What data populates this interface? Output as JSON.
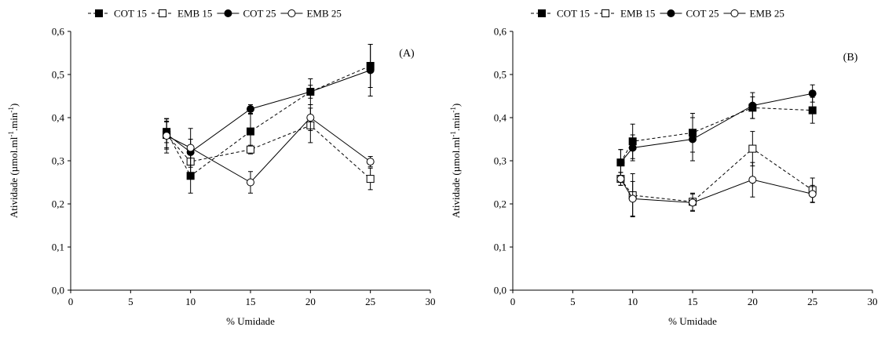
{
  "chart_data": [
    {
      "type": "line",
      "annotation": "(A)",
      "xlabel": "% Umidade",
      "ylabel": "Atividade (µmol.ml-1.min-1)",
      "xlim": [
        0,
        30
      ],
      "ylim": [
        0,
        0.6
      ],
      "xticks": [
        0,
        5,
        10,
        15,
        20,
        25,
        30
      ],
      "yticks": [
        "0,0",
        "0,1",
        "0,2",
        "0,3",
        "0,4",
        "0,5",
        "0,6"
      ],
      "grid": false,
      "legend_position": "top",
      "series": [
        {
          "name": "COT 15",
          "marker": "filled-square",
          "line": "dashed",
          "x": [
            8,
            10,
            15,
            20,
            25
          ],
          "y": [
            0.367,
            0.265,
            0.368,
            0.46,
            0.52
          ],
          "err": [
            0.025,
            0.04,
            0.04,
            0.03,
            0.05
          ]
        },
        {
          "name": "EMB 15",
          "marker": "open-square",
          "line": "dashed",
          "x": [
            8,
            10,
            15,
            20,
            25
          ],
          "y": [
            0.36,
            0.298,
            0.326,
            0.382,
            0.258
          ],
          "err": [
            0.03,
            0.035,
            0.01,
            0.04,
            0.025
          ]
        },
        {
          "name": "COT 25",
          "marker": "filled-circle",
          "line": "solid",
          "x": [
            8,
            10,
            15,
            20,
            25
          ],
          "y": [
            0.362,
            0.32,
            0.42,
            0.46,
            0.51
          ],
          "err": [
            0.035,
            0.03,
            0.01,
            0.015,
            0.06
          ]
        },
        {
          "name": "EMB 25",
          "marker": "open-circle",
          "line": "solid",
          "x": [
            8,
            10,
            15,
            20,
            25
          ],
          "y": [
            0.358,
            0.33,
            0.25,
            0.4,
            0.298
          ],
          "err": [
            0.04,
            0.045,
            0.025,
            0.03,
            0.012
          ]
        }
      ]
    },
    {
      "type": "line",
      "annotation": "(B)",
      "xlabel": "% Umidade",
      "ylabel": "Atividade (µmol.ml-1.min-1)",
      "xlim": [
        0,
        30
      ],
      "ylim": [
        0,
        0.6
      ],
      "xticks": [
        0,
        5,
        10,
        15,
        20,
        25,
        30
      ],
      "yticks": [
        "0,0",
        "0,1",
        "0,2",
        "0,3",
        "0,4",
        "0,5",
        "0,6"
      ],
      "grid": false,
      "legend_position": "top",
      "series": [
        {
          "name": "COT 15",
          "marker": "filled-square",
          "line": "dashed",
          "x": [
            9,
            10,
            15,
            20,
            25
          ],
          "y": [
            0.296,
            0.345,
            0.365,
            0.423,
            0.417
          ],
          "err": [
            0.03,
            0.04,
            0.045,
            0.025,
            0.03
          ]
        },
        {
          "name": "EMB 15",
          "marker": "open-square",
          "line": "dashed",
          "x": [
            9,
            10,
            15,
            20,
            25
          ],
          "y": [
            0.258,
            0.22,
            0.205,
            0.328,
            0.232
          ],
          "err": [
            0.015,
            0.05,
            0.02,
            0.04,
            0.028
          ]
        },
        {
          "name": "COT 25",
          "marker": "filled-circle",
          "line": "solid",
          "x": [
            9,
            10,
            15,
            20,
            25
          ],
          "y": [
            0.296,
            0.33,
            0.35,
            0.428,
            0.456
          ],
          "err": [
            0.03,
            0.03,
            0.05,
            0.03,
            0.02
          ]
        },
        {
          "name": "EMB 25",
          "marker": "open-circle",
          "line": "solid",
          "x": [
            9,
            10,
            15,
            20,
            25
          ],
          "y": [
            0.258,
            0.212,
            0.203,
            0.256,
            0.223
          ],
          "err": [
            0.015,
            0.04,
            0.02,
            0.04,
            0.02
          ]
        }
      ]
    }
  ]
}
